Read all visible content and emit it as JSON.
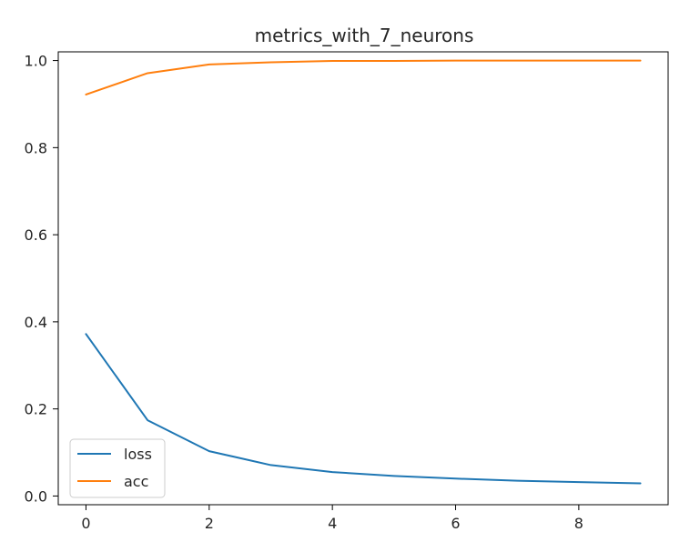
{
  "chart_data": {
    "type": "line",
    "title": "metrics_with_7_neurons",
    "xlabel": "",
    "ylabel": "",
    "x": [
      0,
      1,
      2,
      3,
      4,
      5,
      6,
      7,
      8,
      9
    ],
    "xlim": [
      -0.45,
      9.45
    ],
    "ylim": [
      -0.02,
      1.02
    ],
    "xticks": [
      0,
      2,
      4,
      6,
      8
    ],
    "yticks": [
      0.0,
      0.2,
      0.4,
      0.6,
      0.8,
      1.0
    ],
    "xtick_labels": [
      "0",
      "2",
      "4",
      "6",
      "8"
    ],
    "ytick_labels": [
      "0.0",
      "0.2",
      "0.4",
      "0.6",
      "0.8",
      "1.0"
    ],
    "grid": false,
    "legend_position": "lower left",
    "series": [
      {
        "name": "loss",
        "color": "#1f77b4",
        "values": [
          0.372,
          0.174,
          0.103,
          0.071,
          0.055,
          0.046,
          0.04,
          0.035,
          0.032,
          0.029
        ]
      },
      {
        "name": "acc",
        "color": "#ff7f0e",
        "values": [
          0.922,
          0.971,
          0.991,
          0.996,
          0.999,
          0.999,
          1.0,
          1.0,
          1.0,
          1.0
        ]
      }
    ]
  }
}
